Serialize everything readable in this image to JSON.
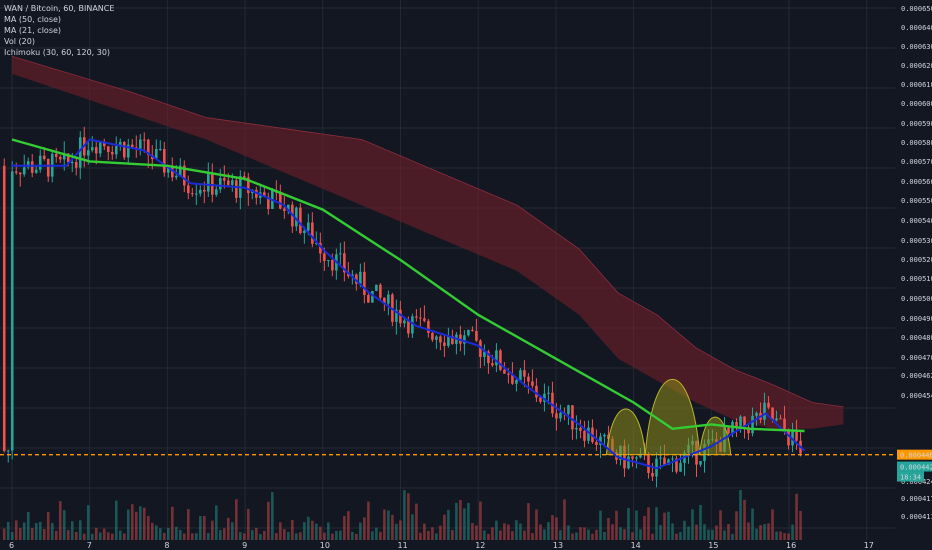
{
  "legend": {
    "symbol": "WAN / Bitcoin, 60, BINANCE",
    "ma50": "MA (50, close)",
    "ma21": "MA (21, close)",
    "vol": "Vol (20)",
    "ichimoku": "Ichimoku (30, 60, 120, 30)"
  },
  "colors": {
    "background": "#131722",
    "grid": "#232834",
    "up": "#26a69a",
    "down": "#ef5350",
    "ma50": "#33cc33",
    "ma21": "#1b2bd6",
    "cloud": "#7a1f2a",
    "pattern_fill": "#8c8c1a",
    "support": "#ff9800",
    "price_tag": "#26a69a"
  },
  "chart_data": {
    "type": "candlestick",
    "y_ticks": [
      "0.0006500",
      "0.0006400",
      "0.0006300",
      "0.0006200",
      "0.0006100",
      "0.0006000",
      "0.0005900",
      "0.0005800",
      "0.0005700",
      "0.0005600",
      "0.0005500",
      "0.0005400",
      "0.0005300",
      "0.0005200",
      "0.0005100",
      "0.0005000",
      "0.0004900",
      "0.0004800",
      "0.0004700",
      "0.0004620",
      "0.0004540",
      "0.0004310",
      "0.0004240",
      "0.0004175",
      "0.0004110"
    ],
    "x_ticks": [
      "6",
      "7",
      "8",
      "9",
      "10",
      "11",
      "12",
      "13",
      "14",
      "15",
      "16",
      "17"
    ],
    "support_level": "0.0004462",
    "last_price": "0.0004426",
    "countdown": "18:34",
    "ma50_path": [
      [
        0,
        0.00059
      ],
      [
        1,
        0.00058
      ],
      [
        2,
        0.000578
      ],
      [
        3,
        0.000572
      ],
      [
        4,
        0.000558
      ],
      [
        5,
        0.000535
      ],
      [
        6,
        0.00051
      ],
      [
        7,
        0.00049
      ],
      [
        8,
        0.00047
      ],
      [
        8.5,
        0.000458
      ],
      [
        9,
        0.00046
      ],
      [
        9.5,
        0.000458
      ],
      [
        10.2,
        0.000457
      ]
    ],
    "ma21_path": [
      [
        0,
        0.000578
      ],
      [
        0.7,
        0.000578
      ],
      [
        1,
        0.00059
      ],
      [
        1.7,
        0.000585
      ],
      [
        2.3,
        0.00057
      ],
      [
        3,
        0.000568
      ],
      [
        3.5,
        0.00056
      ],
      [
        4,
        0.00054
      ],
      [
        4.6,
        0.00052
      ],
      [
        5.2,
        0.000505
      ],
      [
        6,
        0.000496
      ],
      [
        6.6,
        0.000478
      ],
      [
        7.3,
        0.00046
      ],
      [
        7.8,
        0.000445
      ],
      [
        8.3,
        0.00044
      ],
      [
        9,
        0.00045
      ],
      [
        9.7,
        0.000465
      ],
      [
        10.2,
        0.000448
      ]
    ],
    "cloud_top": [
      [
        0,
        0.000628
      ],
      [
        1.5,
        0.000612
      ],
      [
        2.5,
        0.0006
      ],
      [
        3.5,
        0.000595
      ],
      [
        4.5,
        0.00059
      ],
      [
        5.5,
        0.000575
      ],
      [
        6.5,
        0.00056
      ],
      [
        7.3,
        0.00054
      ],
      [
        7.8,
        0.00052
      ],
      [
        8.3,
        0.00051
      ],
      [
        8.8,
        0.000495
      ],
      [
        9.3,
        0.000485
      ],
      [
        9.8,
        0.000478
      ],
      [
        10.3,
        0.00047
      ],
      [
        10.7,
        0.000468
      ]
    ],
    "cloud_bottom": [
      [
        0,
        0.00062
      ],
      [
        1.5,
        0.000602
      ],
      [
        2.5,
        0.00059
      ],
      [
        3.5,
        0.000575
      ],
      [
        4.5,
        0.00056
      ],
      [
        5.5,
        0.000545
      ],
      [
        6.5,
        0.00053
      ],
      [
        7.3,
        0.00051
      ],
      [
        7.8,
        0.00049
      ],
      [
        8.3,
        0.00048
      ],
      [
        8.8,
        0.00047
      ],
      [
        9.3,
        0.000462
      ],
      [
        9.8,
        0.000458
      ],
      [
        10.3,
        0.000458
      ],
      [
        10.7,
        0.00046
      ]
    ],
    "pattern_humps": [
      {
        "x0": 7.65,
        "x1": 8.15,
        "peak": 0.000474
      },
      {
        "x0": 8.15,
        "x1": 8.85,
        "peak": 0.000492
      },
      {
        "x0": 8.85,
        "x1": 9.25,
        "peak": 0.000469
      }
    ]
  }
}
